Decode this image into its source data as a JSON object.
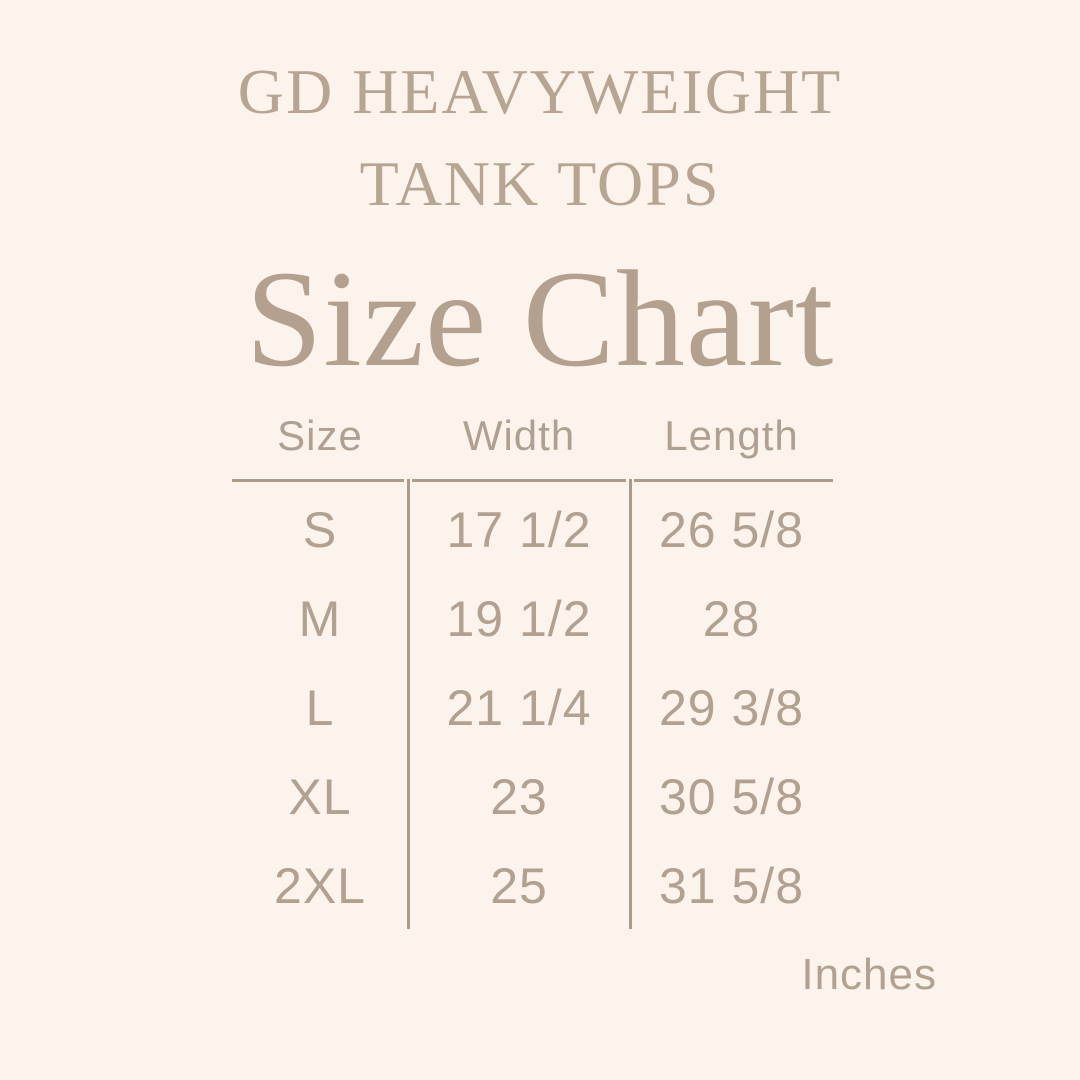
{
  "page": {
    "background_color": "#FCF3EC",
    "text_color": "#B2A090",
    "line_color": "#AC9B8B",
    "heading_color": "#B3A08E"
  },
  "header": {
    "product_line1": "GD HEAVYWEIGHT",
    "product_line2": "TANK TOPS",
    "title": "Size Chart"
  },
  "table": {
    "columns": [
      "Size",
      "Width",
      "Length"
    ],
    "rows": [
      {
        "size": "S",
        "width": "17 1/2",
        "length": "26 5/8"
      },
      {
        "size": "M",
        "width": "19 1/2",
        "length": "28"
      },
      {
        "size": "L",
        "width": "21 1/4",
        "length": "29 3/8"
      },
      {
        "size": "XL",
        "width": "23",
        "length": "30 5/8"
      },
      {
        "size": "2XL",
        "width": "25",
        "length": "31 5/8"
      }
    ],
    "unit_label": "Inches"
  },
  "chart_data": {
    "type": "table",
    "title": "Size Chart",
    "subtitle": "GD HEAVYWEIGHT TANK TOPS",
    "columns": [
      "Size",
      "Width",
      "Length"
    ],
    "rows": [
      [
        "S",
        "17 1/2",
        "26 5/8"
      ],
      [
        "M",
        "19 1/2",
        "28"
      ],
      [
        "L",
        "21 1/4",
        "29 3/8"
      ],
      [
        "XL",
        "23",
        "30 5/8"
      ],
      [
        "2XL",
        "25",
        "31 5/8"
      ]
    ],
    "units": "Inches",
    "numeric": {
      "width_in": [
        17.5,
        19.5,
        21.25,
        23,
        25
      ],
      "length_in": [
        26.625,
        28,
        29.375,
        30.625,
        31.625
      ]
    }
  }
}
